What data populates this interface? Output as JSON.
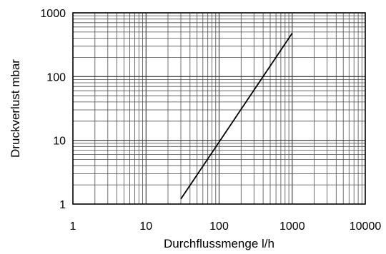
{
  "chart_data": {
    "type": "line",
    "xlabel": "Durchflussmenge l/h",
    "ylabel": "Druckverlust mbar",
    "x_scale": "log",
    "y_scale": "log",
    "xlim": [
      1,
      10000
    ],
    "ylim": [
      1,
      1000
    ],
    "x_ticks": [
      "1",
      "10",
      "100",
      "1000",
      "10000"
    ],
    "y_ticks": [
      "1",
      "10",
      "100",
      "1000"
    ],
    "grid": true,
    "series": [
      {
        "x": [
          30,
          1000
        ],
        "y": [
          1.2,
          480
        ]
      }
    ],
    "colors": {
      "line": "#000000",
      "grid": "#4d4d4d",
      "frame": "#000000"
    }
  }
}
